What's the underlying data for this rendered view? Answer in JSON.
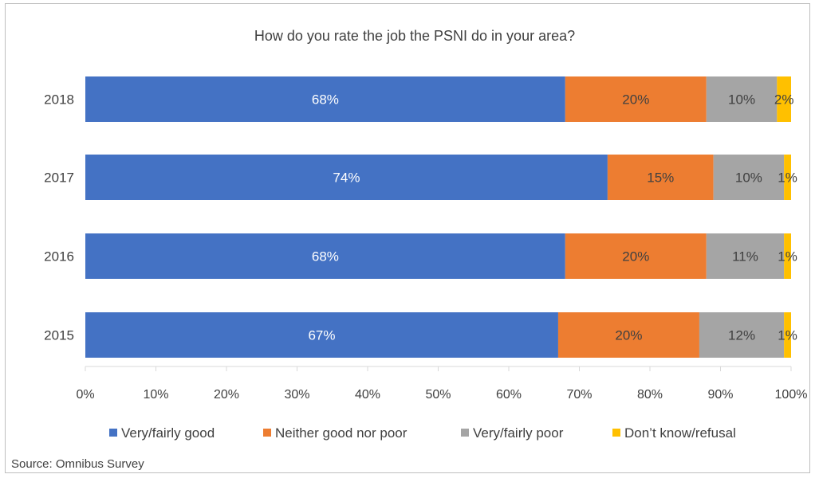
{
  "chart_data": {
    "type": "bar",
    "orientation": "horizontal",
    "stacked": true,
    "title": "How do you rate the job the PSNI do in your area?",
    "categories": [
      "2018",
      "2017",
      "2016",
      "2015"
    ],
    "series": [
      {
        "name": "Very/fairly good",
        "color": "#4472C4",
        "label_color": "#ffffff",
        "values": [
          68,
          74,
          68,
          67
        ]
      },
      {
        "name": "Neither good nor poor",
        "color": "#ED7D31",
        "label_color": "#404040",
        "values": [
          20,
          15,
          20,
          20
        ]
      },
      {
        "name": "Very/fairly poor",
        "color": "#A5A5A5",
        "label_color": "#404040",
        "values": [
          10,
          10,
          11,
          12
        ]
      },
      {
        "name": "Don’t know/refusal",
        "color": "#FFC000",
        "label_color": "#404040",
        "values": [
          2,
          1,
          1,
          1
        ]
      }
    ],
    "xlim": [
      0,
      100
    ],
    "x_ticks": [
      "0%",
      "10%",
      "20%",
      "30%",
      "40%",
      "50%",
      "60%",
      "70%",
      "80%",
      "90%",
      "100%"
    ],
    "legend_position": "bottom",
    "grid": false
  },
  "source": "Source: Omnibus Survey"
}
